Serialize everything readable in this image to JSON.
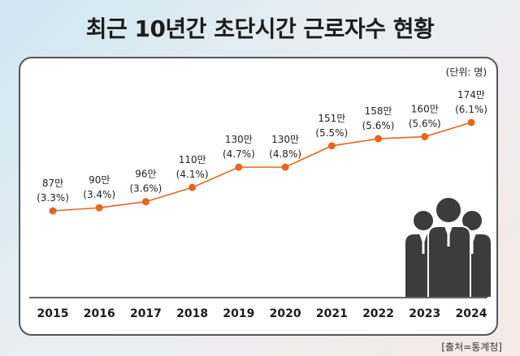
{
  "title": "최근 10년간 초단시간 근로자수 현황",
  "unit": "(단위: 명)",
  "source": "[출처=통계청]",
  "colors": {
    "line": "#e2671f",
    "marker": "#e2671f",
    "figure": "#3c3c3c"
  },
  "chart_data": {
    "type": "line",
    "title": "최근 10년간 초단시간 근로자수 현황",
    "xlabel": "",
    "ylabel": "",
    "categories": [
      "2015",
      "2016",
      "2017",
      "2018",
      "2019",
      "2020",
      "2021",
      "2022",
      "2023",
      "2024"
    ],
    "series": [
      {
        "name": "초단시간 근로자수",
        "values": [
          87,
          90,
          96,
          110,
          130,
          130,
          151,
          158,
          160,
          174
        ],
        "value_labels": [
          "87만",
          "90만",
          "96만",
          "110만",
          "130만",
          "130만",
          "151만",
          "158만",
          "160만",
          "174만"
        ],
        "share_labels": [
          "(3.3%)",
          "(3.4%)",
          "(3.6%)",
          "(4.1%)",
          "(4.7%)",
          "(4.8%)",
          "(5.5%)",
          "(5.6%)",
          "(5.6%)",
          "(6.1%)"
        ]
      }
    ],
    "ylim": [
      0,
      200
    ],
    "grid": false,
    "legend": "none"
  }
}
